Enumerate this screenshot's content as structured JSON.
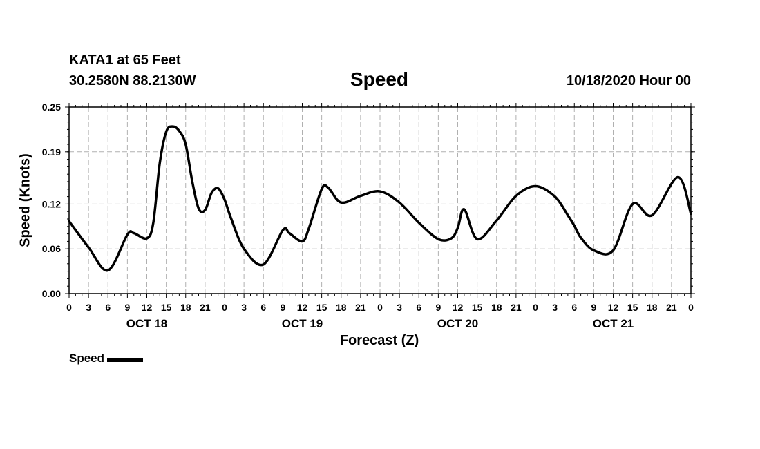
{
  "header": {
    "station": "KATA1 at 65 Feet",
    "coords": "30.2580N 88.2130W",
    "title": "Speed",
    "timestamp": "10/18/2020 Hour 00"
  },
  "chart_data": {
    "type": "line",
    "title": "Speed",
    "xlabel": "Forecast (Z)",
    "ylabel": "Speed (Knots)",
    "x_unit": "forecast hour from 10/18/2020 00Z",
    "xlim": [
      0,
      96
    ],
    "ylim": [
      0.0,
      0.25
    ],
    "yticks": [
      "0.00",
      "0.06",
      "0.12",
      "0.19",
      "0.25"
    ],
    "xtick_labels": [
      "0",
      "3",
      "6",
      "9",
      "12",
      "15",
      "18",
      "21",
      "0",
      "3",
      "6",
      "9",
      "12",
      "15",
      "18",
      "21",
      "0",
      "3",
      "6",
      "9",
      "12",
      "15",
      "18",
      "21",
      "0",
      "3",
      "6",
      "9",
      "12",
      "15",
      "18",
      "21",
      "0"
    ],
    "date_labels": [
      {
        "label": "OCT 18",
        "hour": 12
      },
      {
        "label": "OCT 19",
        "hour": 36
      },
      {
        "label": "OCT 20",
        "hour": 60
      },
      {
        "label": "OCT 21",
        "hour": 84
      }
    ],
    "grid": true,
    "legend": "bottom-left",
    "series": [
      {
        "name": "Speed",
        "color": "#000000",
        "x": [
          0,
          3,
          6,
          9,
          10,
          12,
          13,
          14,
          15,
          16,
          17,
          18,
          19,
          20,
          21,
          22,
          23,
          24,
          25,
          27,
          30,
          33,
          34,
          36,
          37,
          39,
          40,
          42,
          45,
          48,
          51,
          54,
          57,
          59,
          60,
          61,
          63,
          66,
          69,
          72,
          75,
          77,
          78,
          79,
          81,
          84,
          87,
          90,
          94,
          96
        ],
        "y": [
          0.097,
          0.062,
          0.031,
          0.079,
          0.081,
          0.074,
          0.095,
          0.175,
          0.217,
          0.224,
          0.218,
          0.2,
          0.151,
          0.114,
          0.112,
          0.135,
          0.141,
          0.126,
          0.101,
          0.06,
          0.039,
          0.085,
          0.081,
          0.07,
          0.087,
          0.14,
          0.142,
          0.122,
          0.131,
          0.137,
          0.122,
          0.095,
          0.073,
          0.074,
          0.088,
          0.113,
          0.073,
          0.098,
          0.131,
          0.144,
          0.13,
          0.105,
          0.091,
          0.075,
          0.058,
          0.058,
          0.12,
          0.105,
          0.156,
          0.107
        ]
      }
    ]
  }
}
